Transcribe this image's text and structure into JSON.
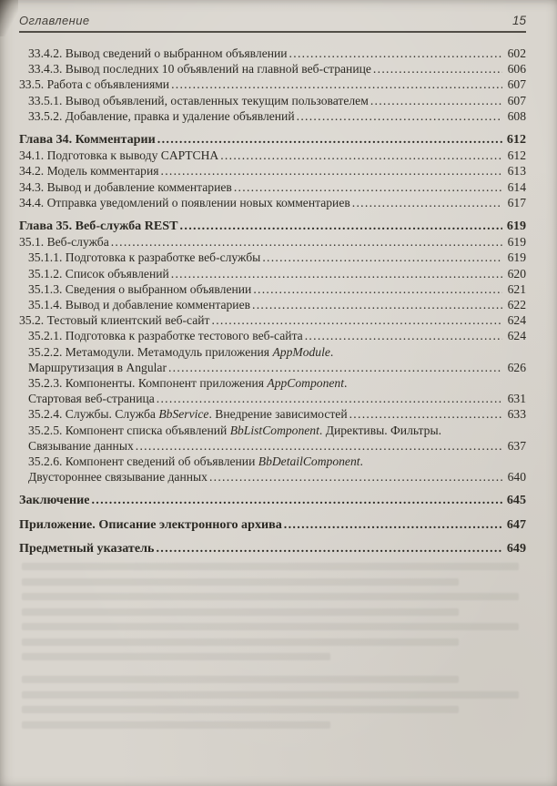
{
  "header": {
    "title": "Оглавление",
    "page_number": "15"
  },
  "colors": {
    "paper": "#d9d5ce",
    "ink": "#2b2923",
    "rule": "#3e3a33"
  },
  "toc": {
    "groups": [
      {
        "entries": [
          {
            "indent": 1,
            "lines": [
              {
                "text": [
                  {
                    "t": "33.4.2. Вывод сведений о выбранном объявлении"
                  }
                ],
                "page": "602"
              }
            ]
          },
          {
            "indent": 1,
            "lines": [
              {
                "text": [
                  {
                    "t": "33.4.3. Вывод последних 10 объявлений на главной веб-странице"
                  }
                ],
                "page": "606"
              }
            ]
          },
          {
            "indent": 0,
            "lines": [
              {
                "text": [
                  {
                    "t": "33.5. Работа с объявлениями"
                  }
                ],
                "page": "607"
              }
            ]
          },
          {
            "indent": 1,
            "lines": [
              {
                "text": [
                  {
                    "t": "33.5.1. Вывод объявлений, оставленных текущим пользователем"
                  }
                ],
                "page": "607"
              }
            ]
          },
          {
            "indent": 1,
            "lines": [
              {
                "text": [
                  {
                    "t": "33.5.2. Добавление, правка и удаление объявлений"
                  }
                ],
                "page": "608"
              }
            ]
          }
        ]
      },
      {
        "entries": [
          {
            "indent": 0,
            "bold": true,
            "lines": [
              {
                "text": [
                  {
                    "t": "Глава 34. Комментарии"
                  }
                ],
                "page": "612"
              }
            ]
          },
          {
            "indent": 0,
            "lines": [
              {
                "text": [
                  {
                    "t": "34.1. Подготовка к выводу CAPTCHA"
                  }
                ],
                "page": "612"
              }
            ]
          },
          {
            "indent": 0,
            "lines": [
              {
                "text": [
                  {
                    "t": "34.2. Модель комментария"
                  }
                ],
                "page": "613"
              }
            ]
          },
          {
            "indent": 0,
            "lines": [
              {
                "text": [
                  {
                    "t": "34.3. Вывод и добавление комментариев"
                  }
                ],
                "page": "614"
              }
            ]
          },
          {
            "indent": 0,
            "lines": [
              {
                "text": [
                  {
                    "t": "34.4. Отправка уведомлений о появлении новых комментариев"
                  }
                ],
                "page": "617"
              }
            ]
          }
        ]
      },
      {
        "entries": [
          {
            "indent": 0,
            "bold": true,
            "lines": [
              {
                "text": [
                  {
                    "t": "Глава 35. Веб-служба REST"
                  }
                ],
                "page": "619"
              }
            ]
          },
          {
            "indent": 0,
            "lines": [
              {
                "text": [
                  {
                    "t": "35.1. Веб-служба"
                  }
                ],
                "page": "619"
              }
            ]
          },
          {
            "indent": 1,
            "lines": [
              {
                "text": [
                  {
                    "t": "35.1.1. Подготовка к разработке веб-службы"
                  }
                ],
                "page": "619"
              }
            ]
          },
          {
            "indent": 1,
            "lines": [
              {
                "text": [
                  {
                    "t": "35.1.2. Список объявлений"
                  }
                ],
                "page": "620"
              }
            ]
          },
          {
            "indent": 1,
            "lines": [
              {
                "text": [
                  {
                    "t": "35.1.3. Сведения о выбранном объявлении"
                  }
                ],
                "page": "621"
              }
            ]
          },
          {
            "indent": 1,
            "lines": [
              {
                "text": [
                  {
                    "t": "35.1.4. Вывод и добавление комментариев"
                  }
                ],
                "page": "622"
              }
            ]
          },
          {
            "indent": 0,
            "lines": [
              {
                "text": [
                  {
                    "t": "35.2. Тестовый клиентский веб-сайт"
                  }
                ],
                "page": "624"
              }
            ]
          },
          {
            "indent": 1,
            "lines": [
              {
                "text": [
                  {
                    "t": "35.2.1. Подготовка к разработке тестового веб-сайта"
                  }
                ],
                "page": "624"
              }
            ]
          },
          {
            "indent": 1,
            "lines": [
              {
                "text": [
                  {
                    "t": "35.2.2. Метамодули. Метамодуль приложения "
                  },
                  {
                    "t": "AppModule",
                    "italic": true
                  },
                  {
                    "t": "."
                  }
                ]
              },
              {
                "text": [
                  {
                    "t": "Маршрутизация в Angular"
                  }
                ],
                "page": "626"
              }
            ]
          },
          {
            "indent": 1,
            "lines": [
              {
                "text": [
                  {
                    "t": "35.2.3. Компоненты. Компонент приложения "
                  },
                  {
                    "t": "AppComponent",
                    "italic": true
                  },
                  {
                    "t": "."
                  }
                ]
              },
              {
                "text": [
                  {
                    "t": "Стартовая веб-страница"
                  }
                ],
                "page": "631"
              }
            ]
          },
          {
            "indent": 1,
            "lines": [
              {
                "text": [
                  {
                    "t": "35.2.4. Службы. Служба "
                  },
                  {
                    "t": "BbService",
                    "italic": true
                  },
                  {
                    "t": ". Внедрение зависимостей"
                  }
                ],
                "page": "633"
              }
            ]
          },
          {
            "indent": 1,
            "lines": [
              {
                "text": [
                  {
                    "t": "35.2.5. Компонент списка объявлений "
                  },
                  {
                    "t": "BbListComponent",
                    "italic": true
                  },
                  {
                    "t": ". Директивы. Фильтры."
                  }
                ]
              },
              {
                "text": [
                  {
                    "t": "Связывание данных"
                  }
                ],
                "page": "637"
              }
            ]
          },
          {
            "indent": 1,
            "lines": [
              {
                "text": [
                  {
                    "t": "35.2.6. Компонент сведений об объявлении "
                  },
                  {
                    "t": "BbDetailComponent",
                    "italic": true
                  },
                  {
                    "t": "."
                  }
                ]
              },
              {
                "text": [
                  {
                    "t": "Двустороннее связывание данных"
                  }
                ],
                "page": "640"
              }
            ]
          }
        ]
      },
      {
        "entries": [
          {
            "indent": 0,
            "bold": true,
            "lines": [
              {
                "text": [
                  {
                    "t": "Заключение"
                  }
                ],
                "page": "645"
              }
            ]
          }
        ]
      },
      {
        "entries": [
          {
            "indent": 0,
            "bold": true,
            "lines": [
              {
                "text": [
                  {
                    "t": "Приложение. Описание электронного архива"
                  }
                ],
                "page": "647"
              }
            ]
          }
        ]
      },
      {
        "entries": [
          {
            "indent": 0,
            "bold": true,
            "lines": [
              {
                "text": [
                  {
                    "t": "Предметный указатель"
                  }
                ],
                "page": "649"
              }
            ]
          }
        ]
      }
    ]
  }
}
